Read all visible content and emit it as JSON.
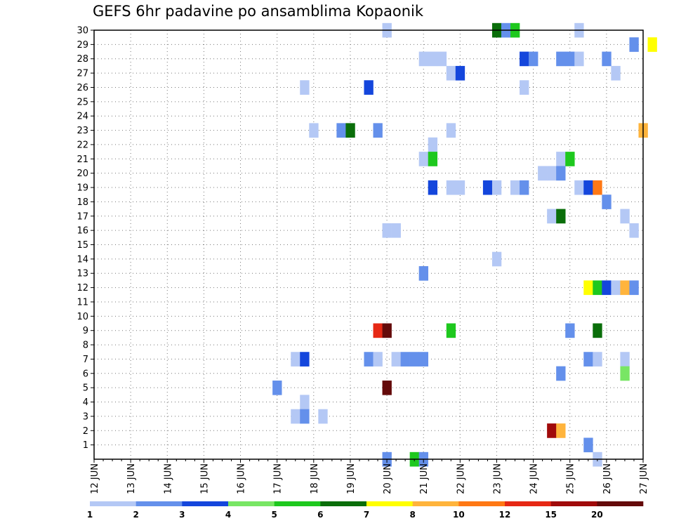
{
  "title": "GEFS 6hr padavine po ansamblima Kopaonik",
  "chart_data": {
    "type": "heatmap",
    "title": "GEFS 6hr padavine po ansamblima Kopaonik",
    "xlabel": "",
    "ylabel": "",
    "x_ticks": [
      "12 JUN",
      "13 JUN",
      "14 JUN",
      "15 JUN",
      "16 JUN",
      "17 JUN",
      "18 JUN",
      "19 JUN",
      "20 JUN",
      "21 JUN",
      "22 JUN",
      "23 JUN",
      "24 JUN",
      "25 JUN",
      "26 JUN",
      "27 JUN"
    ],
    "xlim": [
      "12 JUN",
      "27 JUN"
    ],
    "y_ticks": [
      1,
      2,
      3,
      4,
      5,
      6,
      7,
      8,
      9,
      10,
      11,
      12,
      13,
      14,
      15,
      16,
      17,
      18,
      19,
      20,
      21,
      22,
      23,
      24,
      25,
      26,
      27,
      28,
      29,
      30
    ],
    "ylim": [
      0,
      30
    ],
    "grid": true,
    "legend": {
      "placement": "bottom",
      "boundaries": [
        "1",
        "2",
        "3",
        "4",
        "5",
        "6",
        "7",
        "8",
        "10",
        "12",
        "15",
        "20"
      ],
      "colors": [
        "#b4c8f5",
        "#6490eb",
        "#1446dc",
        "#78e664",
        "#1ec81e",
        "#0a6e0a",
        "#ffff00",
        "#ffb43c",
        "#ff7814",
        "#e62814",
        "#a00a0a",
        "#640a0a"
      ]
    },
    "cells": [
      {
        "member": 30,
        "step": 32,
        "value": 1.5
      },
      {
        "member": 30,
        "step": 44,
        "value": 6
      },
      {
        "member": 30,
        "step": 45,
        "value": 2.5
      },
      {
        "member": 30,
        "step": 46,
        "value": 5
      },
      {
        "member": 30,
        "step": 53,
        "value": 1.5
      },
      {
        "member": 29,
        "step": 61,
        "value": 7
      },
      {
        "member": 29,
        "step": 59,
        "value": 2.5
      },
      {
        "member": 28,
        "step": 36,
        "value": 1.5
      },
      {
        "member": 28,
        "step": 37,
        "value": 1.5
      },
      {
        "member": 28,
        "step": 38,
        "value": 1.5
      },
      {
        "member": 28,
        "step": 47,
        "value": 3.5
      },
      {
        "member": 28,
        "step": 48,
        "value": 2.5
      },
      {
        "member": 28,
        "step": 51,
        "value": 2.5
      },
      {
        "member": 28,
        "step": 52,
        "value": 2.5
      },
      {
        "member": 28,
        "step": 53,
        "value": 1.5
      },
      {
        "member": 28,
        "step": 56,
        "value": 2.5
      },
      {
        "member": 27,
        "step": 39,
        "value": 1.5
      },
      {
        "member": 27,
        "step": 40,
        "value": 3.5
      },
      {
        "member": 27,
        "step": 57,
        "value": 1.5
      },
      {
        "member": 26,
        "step": 23,
        "value": 1.5
      },
      {
        "member": 26,
        "step": 30,
        "value": 3.5
      },
      {
        "member": 26,
        "step": 47,
        "value": 1.5
      },
      {
        "member": 23,
        "step": 24,
        "value": 1.5
      },
      {
        "member": 23,
        "step": 27,
        "value": 2.5
      },
      {
        "member": 23,
        "step": 28,
        "value": 6.5
      },
      {
        "member": 23,
        "step": 31,
        "value": 2.5
      },
      {
        "member": 23,
        "step": 39,
        "value": 1.5
      },
      {
        "member": 23,
        "step": 60,
        "value": 9
      },
      {
        "member": 22,
        "step": 37,
        "value": 1.5
      },
      {
        "member": 21,
        "step": 36,
        "value": 1.5
      },
      {
        "member": 21,
        "step": 37,
        "value": 5
      },
      {
        "member": 21,
        "step": 51,
        "value": 1.5
      },
      {
        "member": 21,
        "step": 52,
        "value": 5
      },
      {
        "member": 20,
        "step": 49,
        "value": 1.5
      },
      {
        "member": 20,
        "step": 50,
        "value": 1.5
      },
      {
        "member": 20,
        "step": 51,
        "value": 2.5
      },
      {
        "member": 19,
        "step": 37,
        "value": 3.5
      },
      {
        "member": 19,
        "step": 39,
        "value": 1.5
      },
      {
        "member": 19,
        "step": 40,
        "value": 1.5
      },
      {
        "member": 19,
        "step": 43,
        "value": 3.5
      },
      {
        "member": 19,
        "step": 44,
        "value": 1.5
      },
      {
        "member": 19,
        "step": 46,
        "value": 1.5
      },
      {
        "member": 19,
        "step": 47,
        "value": 2.5
      },
      {
        "member": 19,
        "step": 53,
        "value": 1.5
      },
      {
        "member": 19,
        "step": 54,
        "value": 3.5
      },
      {
        "member": 19,
        "step": 55,
        "value": 11
      },
      {
        "member": 18,
        "step": 56,
        "value": 2.5
      },
      {
        "member": 17,
        "step": 50,
        "value": 1.5
      },
      {
        "member": 17,
        "step": 51,
        "value": 6.5
      },
      {
        "member": 17,
        "step": 58,
        "value": 1.5
      },
      {
        "member": 16,
        "step": 32,
        "value": 1.5
      },
      {
        "member": 16,
        "step": 33,
        "value": 1.5
      },
      {
        "member": 16,
        "step": 59,
        "value": 1.5
      },
      {
        "member": 14,
        "step": 44,
        "value": 1.5
      },
      {
        "member": 13,
        "step": 36,
        "value": 2.5
      },
      {
        "member": 12,
        "step": 54,
        "value": 7
      },
      {
        "member": 12,
        "step": 55,
        "value": 5.5
      },
      {
        "member": 12,
        "step": 56,
        "value": 3.5
      },
      {
        "member": 12,
        "step": 57,
        "value": 1.5
      },
      {
        "member": 12,
        "step": 58,
        "value": 9
      },
      {
        "member": 12,
        "step": 59,
        "value": 2.5
      },
      {
        "member": 9,
        "step": 31,
        "value": 13
      },
      {
        "member": 9,
        "step": 32,
        "value": 22
      },
      {
        "member": 9,
        "step": 39,
        "value": 5.5
      },
      {
        "member": 9,
        "step": 52,
        "value": 2.5
      },
      {
        "member": 9,
        "step": 55,
        "value": 6.5
      },
      {
        "member": 7,
        "step": 22,
        "value": 1.5
      },
      {
        "member": 7,
        "step": 23,
        "value": 3.5
      },
      {
        "member": 7,
        "step": 30,
        "value": 2.5
      },
      {
        "member": 7,
        "step": 31,
        "value": 1.5
      },
      {
        "member": 7,
        "step": 33,
        "value": 1.5
      },
      {
        "member": 7,
        "step": 34,
        "value": 2.5
      },
      {
        "member": 7,
        "step": 35,
        "value": 2.5
      },
      {
        "member": 7,
        "step": 36,
        "value": 2.5
      },
      {
        "member": 7,
        "step": 54,
        "value": 2.5
      },
      {
        "member": 7,
        "step": 55,
        "value": 1.5
      },
      {
        "member": 7,
        "step": 58,
        "value": 1.5
      },
      {
        "member": 6,
        "step": 51,
        "value": 2.5
      },
      {
        "member": 6,
        "step": 58,
        "value": 4.5
      },
      {
        "member": 5,
        "step": 20,
        "value": 2.5
      },
      {
        "member": 5,
        "step": 32,
        "value": 22
      },
      {
        "member": 4,
        "step": 23,
        "value": 1.5
      },
      {
        "member": 3,
        "step": 22,
        "value": 1.5
      },
      {
        "member": 3,
        "step": 23,
        "value": 2.5
      },
      {
        "member": 3,
        "step": 25,
        "value": 1.5
      },
      {
        "member": 2,
        "step": 50,
        "value": 17
      },
      {
        "member": 2,
        "step": 51,
        "value": 9
      },
      {
        "member": 1,
        "step": 54,
        "value": 2.5
      },
      {
        "member": 0,
        "step": 32,
        "value": 2.5
      },
      {
        "member": 0,
        "step": 35,
        "value": 5.5
      },
      {
        "member": 0,
        "step": 36,
        "value": 2.5
      },
      {
        "member": 0,
        "step": 55,
        "value": 1.5
      }
    ]
  }
}
